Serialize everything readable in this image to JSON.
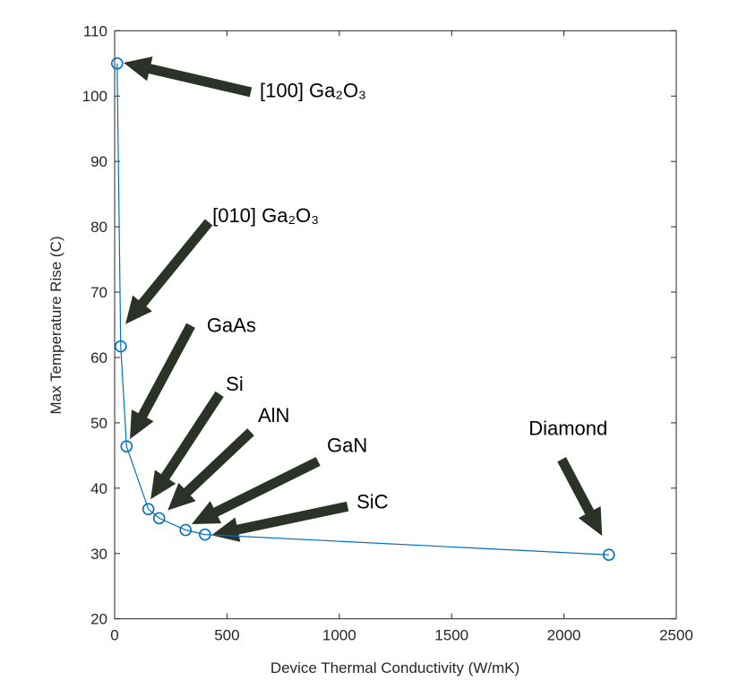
{
  "chart_data": {
    "type": "line",
    "title": "",
    "xlabel": "Device Thermal Conductivity (W/mK)",
    "ylabel": "Max Temperature Rise (C)",
    "xlim": [
      0,
      2500
    ],
    "ylim": [
      20,
      110
    ],
    "xticks": [
      0,
      500,
      1000,
      1500,
      2000,
      2500
    ],
    "yticks": [
      20,
      30,
      40,
      50,
      60,
      70,
      80,
      90,
      100,
      110
    ],
    "grid": false,
    "line_color": "#0072BD",
    "arrow_color": "#2b3328",
    "marker": "circle-open",
    "series": [
      {
        "x": [
          11,
          27,
          53,
          150,
          198,
          316,
          402,
          2200
        ],
        "y": [
          105,
          61.7,
          46.4,
          36.8,
          35.4,
          33.6,
          32.9,
          29.8
        ]
      }
    ],
    "annotations": [
      {
        "text": "[100] Ga₂O₃",
        "label_at": [
          646,
          100.9
        ],
        "arrow_from": [
          606,
          100.6
        ],
        "arrow_to": [
          40,
          105.1
        ]
      },
      {
        "text": "[010] Ga₂O₃",
        "label_at": [
          435,
          81.8
        ],
        "arrow_from": [
          419,
          80.7
        ],
        "arrow_to": [
          48,
          65.1
        ]
      },
      {
        "text": "GaAs",
        "label_at": [
          410,
          65
        ],
        "arrow_from": [
          339,
          64.9
        ],
        "arrow_to": [
          68,
          47.5
        ]
      },
      {
        "text": "Si",
        "label_at": [
          495,
          56
        ],
        "arrow_from": [
          467,
          54.4
        ],
        "arrow_to": [
          160,
          38.3
        ]
      },
      {
        "text": "AlN",
        "label_at": [
          638,
          51.2
        ],
        "arrow_from": [
          606,
          48.6
        ],
        "arrow_to": [
          236,
          36.6
        ]
      },
      {
        "text": "GaN",
        "label_at": [
          945,
          46.6
        ],
        "arrow_from": [
          906,
          44.1
        ],
        "arrow_to": [
          343,
          34.5
        ]
      },
      {
        "text": "SiC",
        "label_at": [
          1077,
          38
        ],
        "arrow_from": [
          1037,
          37.2
        ],
        "arrow_to": [
          431,
          32.8
        ]
      },
      {
        "text": "Diamond",
        "label_at": [
          1843,
          49.2
        ],
        "arrow_from": [
          1990,
          44.4
        ],
        "arrow_to": [
          2170,
          32.7
        ]
      }
    ]
  }
}
